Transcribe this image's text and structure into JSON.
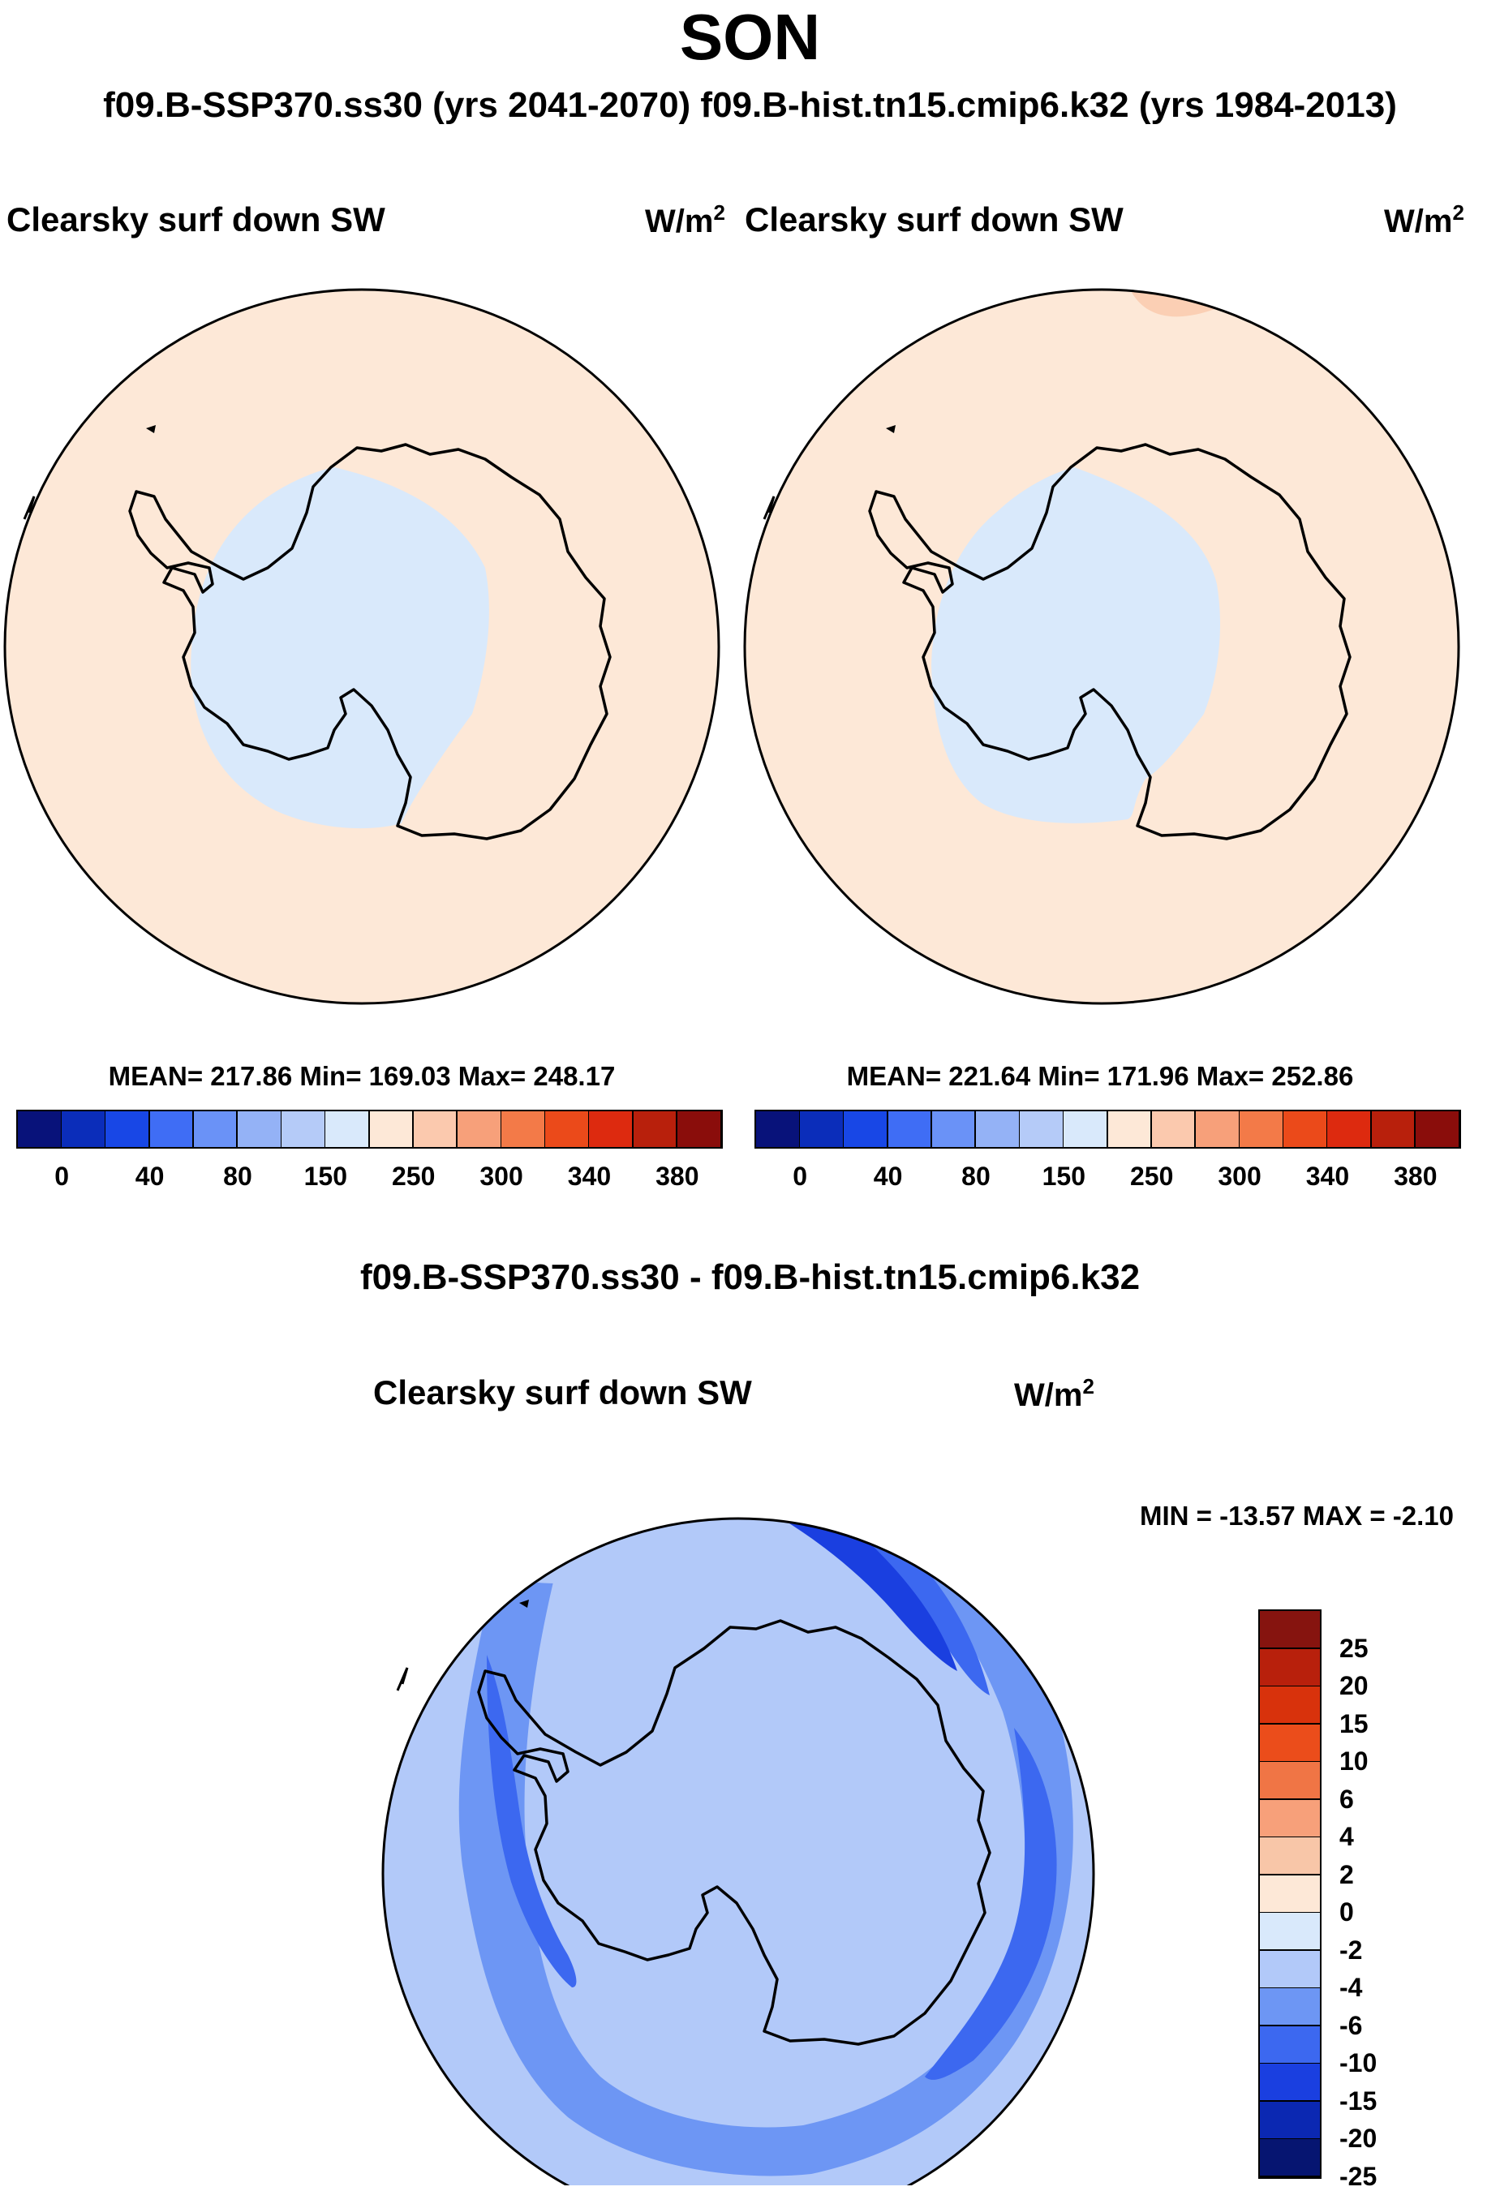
{
  "figure": {
    "title": "SON",
    "subtitle": "f09.B-SSP370.ss30 (yrs 2041-2070)  f09.B-hist.tn15.cmip6.k32 (yrs 1984-2013)",
    "diff_title": "f09.B-SSP370.ss30 - f09.B-hist.tn15.cmip6.k32"
  },
  "colors": {
    "abs_scale": [
      "#08127a",
      "#0b2dba",
      "#1847e6",
      "#3f6df5",
      "#6a92f7",
      "#94b2f6",
      "#b5cbf8",
      "#d9e9fb",
      "#fde8d7",
      "#fbc9ae",
      "#f7a07a",
      "#f37a48",
      "#eb4a1a",
      "#dd2a0f",
      "#b8200c",
      "#8a0d0b"
    ],
    "diff_scale": [
      "#061571",
      "#0b28b2",
      "#1a3fe0",
      "#3c68f0",
      "#6d96f4",
      "#b2c9f9",
      "#d9e9fb",
      "#fde8d7",
      "#f8c6a8",
      "#f7a07a",
      "#f07545",
      "#eb4d1b",
      "#d8320c",
      "#b8200c",
      "#86140f"
    ],
    "coast": "#000000"
  },
  "chart_data": [
    {
      "type": "heatmap",
      "panel": "left",
      "title": "Clearsky surf down SW",
      "units": "W/m",
      "units_exponent": "2",
      "stats": {
        "label": "MEAN= 217.86  Min= 169.03  Max= 248.17",
        "mean": 217.86,
        "min": 169.03,
        "max": 248.17
      },
      "colorbar": {
        "ticks": [
          "0",
          "40",
          "80",
          "150",
          "250",
          "300",
          "340",
          "380"
        ]
      }
    },
    {
      "type": "heatmap",
      "panel": "right",
      "title": "Clearsky surf down SW",
      "units": "W/m",
      "units_exponent": "2",
      "stats": {
        "label": "MEAN= 221.64  Min= 171.96  Max= 252.86",
        "mean": 221.64,
        "min": 171.96,
        "max": 252.86
      },
      "colorbar": {
        "ticks": [
          "0",
          "40",
          "80",
          "150",
          "250",
          "300",
          "340",
          "380"
        ]
      }
    },
    {
      "type": "heatmap",
      "panel": "difference",
      "title": "Clearsky surf down SW",
      "units": "W/m",
      "units_exponent": "2",
      "stats": {
        "label": "MIN = -13.57 MAX =  -2.10",
        "min": -13.57,
        "max": -2.1
      },
      "colorbar": {
        "ticks": [
          "25",
          "20",
          "15",
          "10",
          "6",
          "4",
          "2",
          "0",
          "-2",
          "-4",
          "-6",
          "-10",
          "-15",
          "-20",
          "-25"
        ]
      }
    }
  ]
}
